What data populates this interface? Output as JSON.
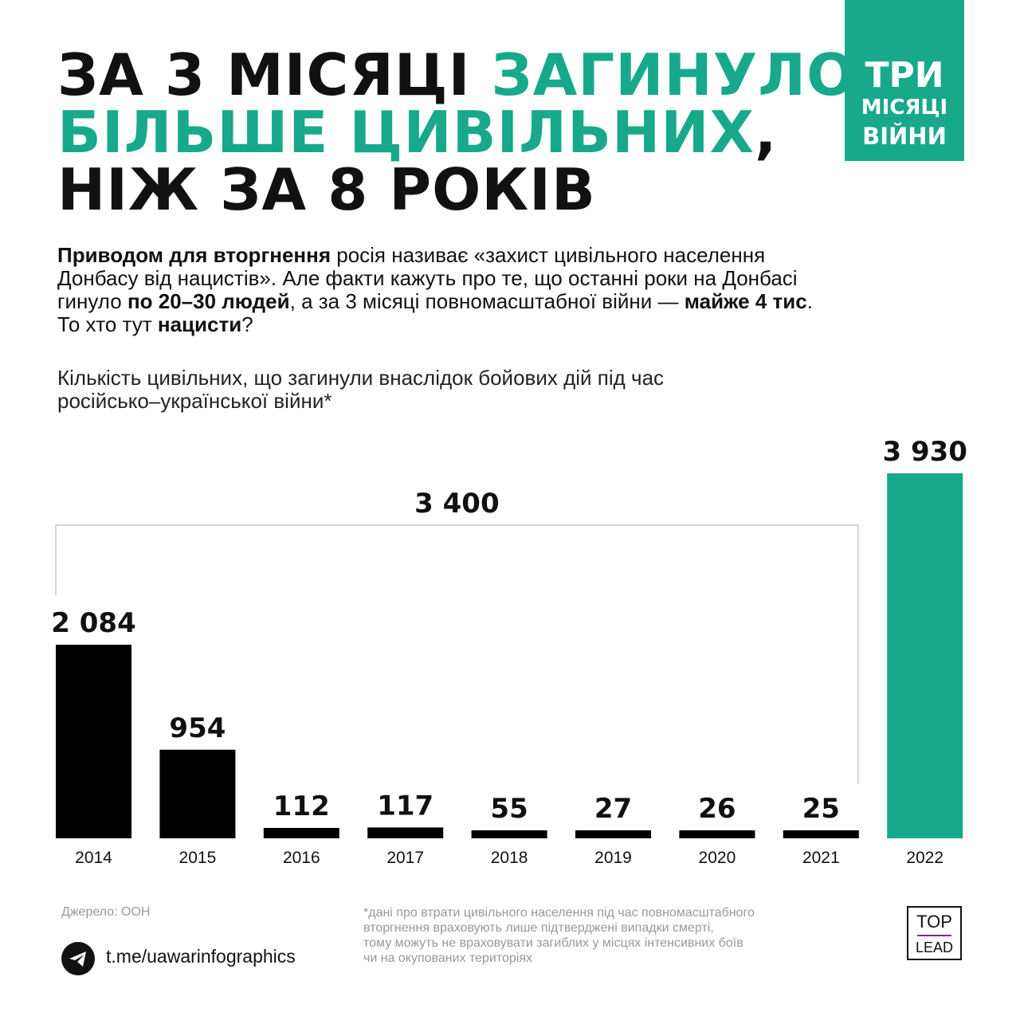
{
  "title": {
    "line1_black": "ЗА 3 МІСЯЦІ ",
    "line1_accent": "ЗАГИНУЛО",
    "line2_accent": "БІЛЬШЕ ЦИВІЛЬНИХ",
    "line2_black": ",",
    "line3_black": "НІЖ ЗА 8 РОКІВ"
  },
  "badge": {
    "line1": "ТРИ",
    "line2": "МІСЯЦІ",
    "line3": "ВІЙНИ"
  },
  "intro": {
    "l1_bold": "Приводом для вторгнення",
    "l1_rest": " росія називає «захист цивільного населення",
    "l2": "Донбасу від нацистів». Але факти кажуть про те, що останні роки на Донбасі",
    "l3_a": "гинуло ",
    "l3_b": "по 20–30 людей",
    "l3_c": ", а за 3 місяці повномасштабної війни — ",
    "l3_d": "майже 4 тис",
    "l3_e": ".",
    "l4_a": "То хто тут ",
    "l4_b": "нацисти",
    "l4_c": "?"
  },
  "subtitle": {
    "line1": "Кількість цивільних, що загинули внаслідок бойових дій під час",
    "line2": "російсько–української війни*"
  },
  "chart_data": {
    "type": "bar",
    "categories": [
      "2014",
      "2015",
      "2016",
      "2017",
      "2018",
      "2019",
      "2020",
      "2021",
      "2022"
    ],
    "values": [
      2084,
      954,
      112,
      117,
      55,
      27,
      26,
      25,
      3930
    ],
    "value_labels": [
      "2 084",
      "954",
      "112",
      "117",
      "55",
      "27",
      "26",
      "25",
      "3 930"
    ],
    "bar_colors": [
      "#000000",
      "#000000",
      "#000000",
      "#000000",
      "#000000",
      "#000000",
      "#000000",
      "#000000",
      "#17a98a"
    ],
    "ylim": [
      0,
      4000
    ],
    "grid": false,
    "bracket": {
      "from": "2014",
      "to": "2021",
      "label": "3 400"
    }
  },
  "colors": {
    "accent": "#17a98a",
    "text": "#111111",
    "muted": "#999999"
  },
  "source": "Джерело: ООН",
  "note": {
    "line1": "*дані про втрати цивільного населення під час повномасштабного",
    "line2": "вторгнення враховують лише підтверджені випадки смерті,",
    "line3": "тому можуть не враховувати загиблих у місцях інтенсивних боїв",
    "line4": "чи на окупованих територіях"
  },
  "telegram": {
    "icon": "telegram-icon",
    "link": "t.me/uawarinfographics"
  },
  "logo": {
    "line1": "TOP",
    "line2": "LEAD"
  }
}
